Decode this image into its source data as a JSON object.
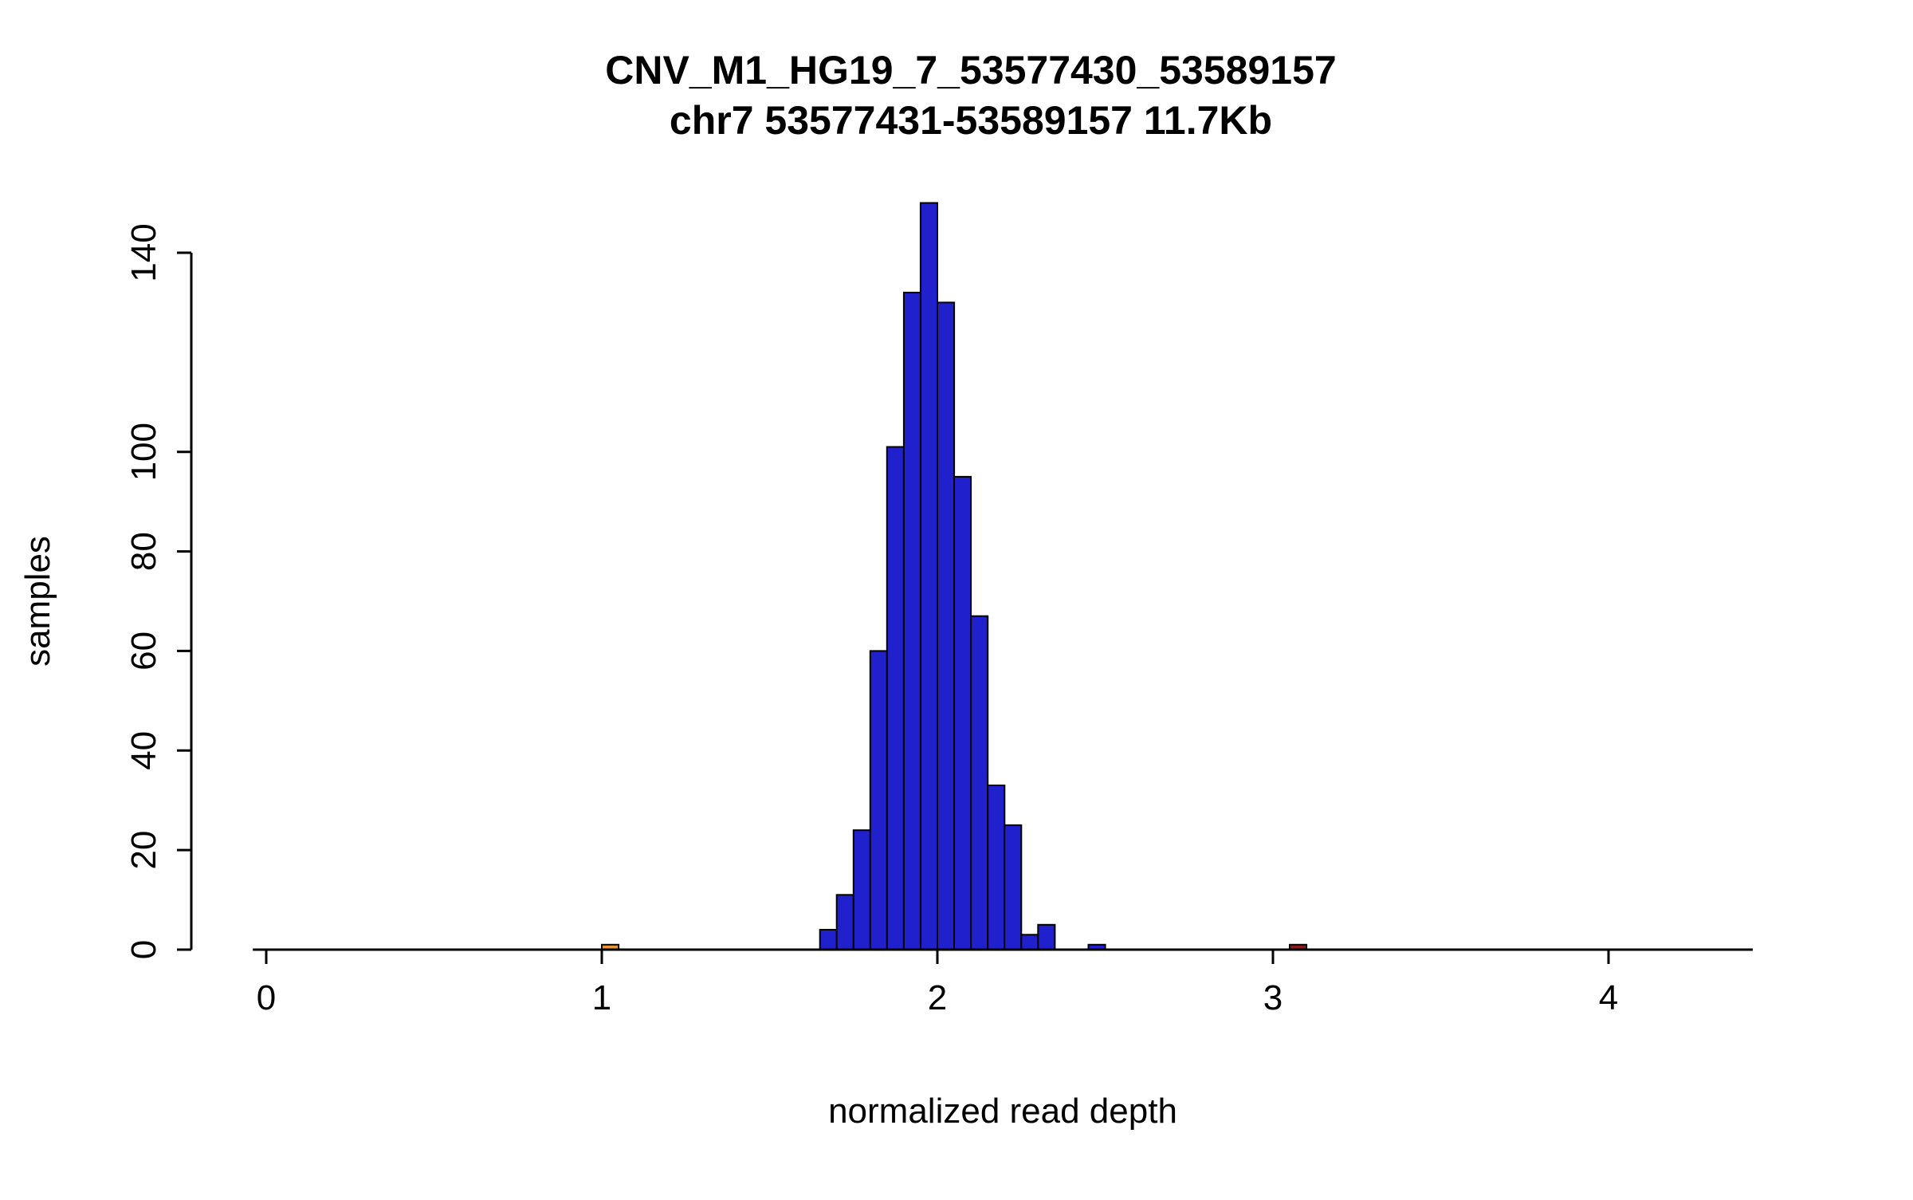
{
  "figure": {
    "background": "#FFFFFF"
  },
  "chart_data": {
    "type": "bar",
    "subtype": "histogram",
    "title": "CNV_M1_HG19_7_53577430_53589157",
    "subtitle": "chr7 53577431-53589157 11.7Kb",
    "xlabel": "normalized read depth",
    "ylabel": "samples",
    "x_ticks": [
      0,
      1,
      2,
      3,
      4
    ],
    "y_ticks": [
      0,
      20,
      40,
      60,
      80,
      100,
      140
    ],
    "xlim": [
      -0.04,
      4.43
    ],
    "ylim": [
      0,
      153
    ],
    "grid": "off",
    "legend": "none",
    "bin_width": 0.05,
    "colors": {
      "bar_default": "#2020CC",
      "bar_stroke": "#000000",
      "outlier_low": "#E8963C",
      "outlier_high": "#8B1A1A",
      "axis": "#000000"
    },
    "bins": [
      {
        "x0": 1.0,
        "count": 1,
        "color": "#E8963C"
      },
      {
        "x0": 1.65,
        "count": 4
      },
      {
        "x0": 1.7,
        "count": 11
      },
      {
        "x0": 1.75,
        "count": 24
      },
      {
        "x0": 1.8,
        "count": 60
      },
      {
        "x0": 1.85,
        "count": 101
      },
      {
        "x0": 1.9,
        "count": 132
      },
      {
        "x0": 1.95,
        "count": 150
      },
      {
        "x0": 2.0,
        "count": 130
      },
      {
        "x0": 2.05,
        "count": 95
      },
      {
        "x0": 2.1,
        "count": 67
      },
      {
        "x0": 2.15,
        "count": 33
      },
      {
        "x0": 2.2,
        "count": 25
      },
      {
        "x0": 2.25,
        "count": 3
      },
      {
        "x0": 2.3,
        "count": 5
      },
      {
        "x0": 2.45,
        "count": 1
      },
      {
        "x0": 3.05,
        "count": 1,
        "color": "#8B1A1A"
      }
    ]
  }
}
